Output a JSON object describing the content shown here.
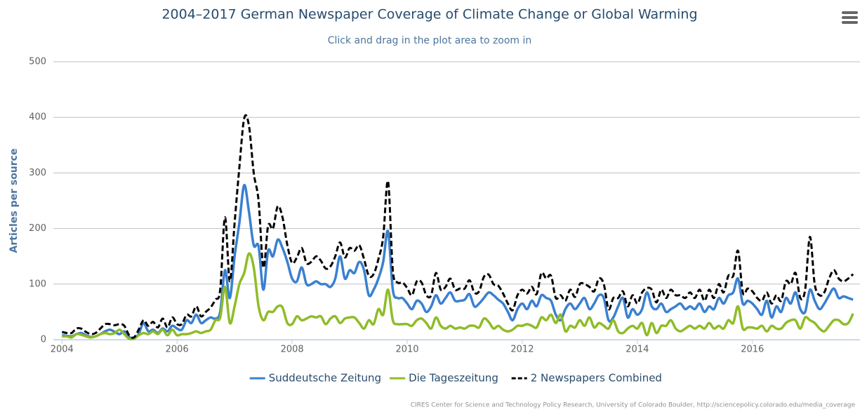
{
  "chart_data": {
    "type": "line",
    "title": "2004–2017 German Newspaper Coverage of Climate Change or Global Warming",
    "subtitle": "Click and drag in the plot area to zoom in",
    "y_label": "Articles per source",
    "credits": "CIRES Center for Science and Technology Policy Research, University of Colorado Boulder, http://sciencepolicy.colorado.edu/media_coverage",
    "xlim": [
      2003.85,
      2017.87
    ],
    "xticks": [
      2004,
      2006,
      2008,
      2010,
      2012,
      2014,
      2016
    ],
    "ylim": [
      0,
      500
    ],
    "yticks": [
      0,
      100,
      200,
      300,
      400,
      500
    ],
    "grid": true,
    "legend": "bottom",
    "x": [
      2004,
      2004.083,
      2004.167,
      2004.25,
      2004.333,
      2004.417,
      2004.5,
      2004.583,
      2004.667,
      2004.75,
      2004.833,
      2004.917,
      2005,
      2005.083,
      2005.167,
      2005.25,
      2005.333,
      2005.417,
      2005.5,
      2005.583,
      2005.667,
      2005.75,
      2005.833,
      2005.917,
      2006,
      2006.083,
      2006.167,
      2006.25,
      2006.333,
      2006.417,
      2006.5,
      2006.583,
      2006.667,
      2006.75,
      2006.833,
      2006.917,
      2007,
      2007.083,
      2007.167,
      2007.25,
      2007.333,
      2007.417,
      2007.5,
      2007.583,
      2007.667,
      2007.75,
      2007.833,
      2007.917,
      2008,
      2008.083,
      2008.167,
      2008.25,
      2008.333,
      2008.417,
      2008.5,
      2008.583,
      2008.667,
      2008.75,
      2008.833,
      2008.917,
      2009,
      2009.083,
      2009.167,
      2009.25,
      2009.333,
      2009.417,
      2009.5,
      2009.583,
      2009.667,
      2009.75,
      2009.833,
      2009.917,
      2010,
      2010.083,
      2010.167,
      2010.25,
      2010.333,
      2010.417,
      2010.5,
      2010.583,
      2010.667,
      2010.75,
      2010.833,
      2010.917,
      2011,
      2011.083,
      2011.167,
      2011.25,
      2011.333,
      2011.417,
      2011.5,
      2011.583,
      2011.667,
      2011.75,
      2011.833,
      2011.917,
      2012,
      2012.083,
      2012.167,
      2012.25,
      2012.333,
      2012.417,
      2012.5,
      2012.583,
      2012.667,
      2012.75,
      2012.833,
      2012.917,
      2013,
      2013.083,
      2013.167,
      2013.25,
      2013.333,
      2013.417,
      2013.5,
      2013.583,
      2013.667,
      2013.75,
      2013.833,
      2013.917,
      2014,
      2014.083,
      2014.167,
      2014.25,
      2014.333,
      2014.417,
      2014.5,
      2014.583,
      2014.667,
      2014.75,
      2014.833,
      2014.917,
      2015,
      2015.083,
      2015.167,
      2015.25,
      2015.333,
      2015.417,
      2015.5,
      2015.583,
      2015.667,
      2015.75,
      2015.833,
      2015.917,
      2016,
      2016.083,
      2016.167,
      2016.25,
      2016.333,
      2016.417,
      2016.5,
      2016.583,
      2016.667,
      2016.75,
      2016.833,
      2016.917,
      2017,
      2017.083,
      2017.167,
      2017.25,
      2017.333,
      2017.417,
      2017.5,
      2017.583,
      2017.667,
      2017.75
    ],
    "series": [
      {
        "name": "Suddeutsche Zeitung",
        "color": "#3a80d0",
        "dash": false,
        "values": [
          8,
          7,
          6,
          10,
          12,
          8,
          5,
          6,
          10,
          15,
          18,
          14,
          10,
          15,
          5,
          2,
          10,
          30,
          15,
          18,
          12,
          20,
          15,
          25,
          20,
          18,
          35,
          30,
          45,
          30,
          35,
          40,
          38,
          50,
          125,
          75,
          150,
          210,
          278,
          230,
          170,
          168,
          90,
          160,
          150,
          180,
          165,
          140,
          110,
          105,
          130,
          100,
          100,
          105,
          100,
          100,
          95,
          110,
          150,
          110,
          125,
          120,
          140,
          125,
          80,
          90,
          110,
          140,
          195,
          90,
          75,
          75,
          65,
          55,
          70,
          65,
          50,
          60,
          80,
          65,
          75,
          85,
          70,
          70,
          72,
          82,
          60,
          65,
          75,
          85,
          80,
          72,
          65,
          50,
          35,
          55,
          65,
          55,
          70,
          60,
          80,
          75,
          70,
          45,
          35,
          55,
          65,
          55,
          65,
          75,
          55,
          65,
          80,
          75,
          35,
          40,
          60,
          75,
          40,
          55,
          45,
          55,
          85,
          60,
          55,
          65,
          50,
          55,
          60,
          65,
          55,
          60,
          55,
          65,
          50,
          60,
          55,
          75,
          65,
          80,
          85,
          110,
          65,
          70,
          65,
          55,
          45,
          70,
          40,
          60,
          50,
          75,
          65,
          85,
          55,
          50,
          90,
          70,
          55,
          65,
          80,
          92,
          75,
          78,
          75,
          72
        ]
      },
      {
        "name": "Die Tageszeitung",
        "color": "#8fbc28",
        "dash": false,
        "values": [
          6,
          6,
          4,
          10,
          9,
          6,
          4,
          6,
          10,
          12,
          10,
          12,
          18,
          10,
          2,
          2,
          8,
          12,
          10,
          15,
          10,
          18,
          8,
          18,
          8,
          10,
          10,
          12,
          15,
          12,
          15,
          18,
          35,
          40,
          95,
          30,
          60,
          100,
          120,
          155,
          130,
          60,
          35,
          50,
          50,
          60,
          58,
          30,
          28,
          42,
          35,
          38,
          42,
          40,
          42,
          28,
          38,
          42,
          30,
          38,
          40,
          40,
          30,
          20,
          35,
          28,
          55,
          45,
          90,
          35,
          28,
          28,
          28,
          25,
          35,
          38,
          30,
          20,
          40,
          25,
          20,
          25,
          20,
          22,
          20,
          25,
          25,
          22,
          38,
          32,
          20,
          25,
          18,
          15,
          18,
          25,
          25,
          28,
          25,
          22,
          40,
          35,
          45,
          30,
          45,
          15,
          25,
          22,
          35,
          25,
          40,
          22,
          30,
          25,
          20,
          35,
          15,
          12,
          20,
          25,
          20,
          30,
          8,
          30,
          12,
          25,
          25,
          35,
          20,
          15,
          20,
          25,
          20,
          25,
          20,
          30,
          20,
          25,
          20,
          35,
          30,
          60,
          20,
          22,
          22,
          20,
          25,
          15,
          25,
          20,
          20,
          30,
          35,
          35,
          20,
          40,
          35,
          30,
          20,
          15,
          25,
          35,
          35,
          28,
          30,
          47
        ]
      },
      {
        "name": "2 Newspapers Combined",
        "color": "#000000",
        "dash": true,
        "values": [
          14,
          12,
          12,
          20,
          20,
          14,
          10,
          12,
          20,
          28,
          28,
          26,
          28,
          25,
          8,
          4,
          18,
          35,
          25,
          32,
          22,
          38,
          22,
          40,
          28,
          28,
          45,
          42,
          60,
          42,
          50,
          58,
          72,
          90,
          220,
          105,
          210,
          310,
          398,
          385,
          300,
          250,
          130,
          205,
          200,
          240,
          220,
          170,
          138,
          148,
          165,
          138,
          140,
          150,
          142,
          128,
          132,
          150,
          175,
          148,
          165,
          160,
          170,
          145,
          115,
          118,
          145,
          185,
          285,
          125,
          103,
          103,
          93,
          80,
          105,
          103,
          80,
          80,
          120,
          90,
          95,
          110,
          90,
          92,
          92,
          107,
          85,
          87,
          113,
          117,
          100,
          97,
          83,
          65,
          53,
          80,
          90,
          83,
          95,
          82,
          120,
          110,
          115,
          75,
          80,
          70,
          90,
          77,
          100,
          100,
          95,
          87,
          110,
          100,
          55,
          75,
          75,
          87,
          60,
          80,
          65,
          85,
          93,
          90,
          67,
          90,
          75,
          90,
          80,
          80,
          75,
          85,
          75,
          90,
          70,
          90,
          75,
          100,
          85,
          115,
          115,
          160,
          85,
          92,
          87,
          75,
          70,
          85,
          65,
          80,
          70,
          105,
          100,
          120,
          75,
          90,
          185,
          100,
          80,
          85,
          110,
          125,
          110,
          105,
          110,
          118
        ]
      }
    ]
  }
}
